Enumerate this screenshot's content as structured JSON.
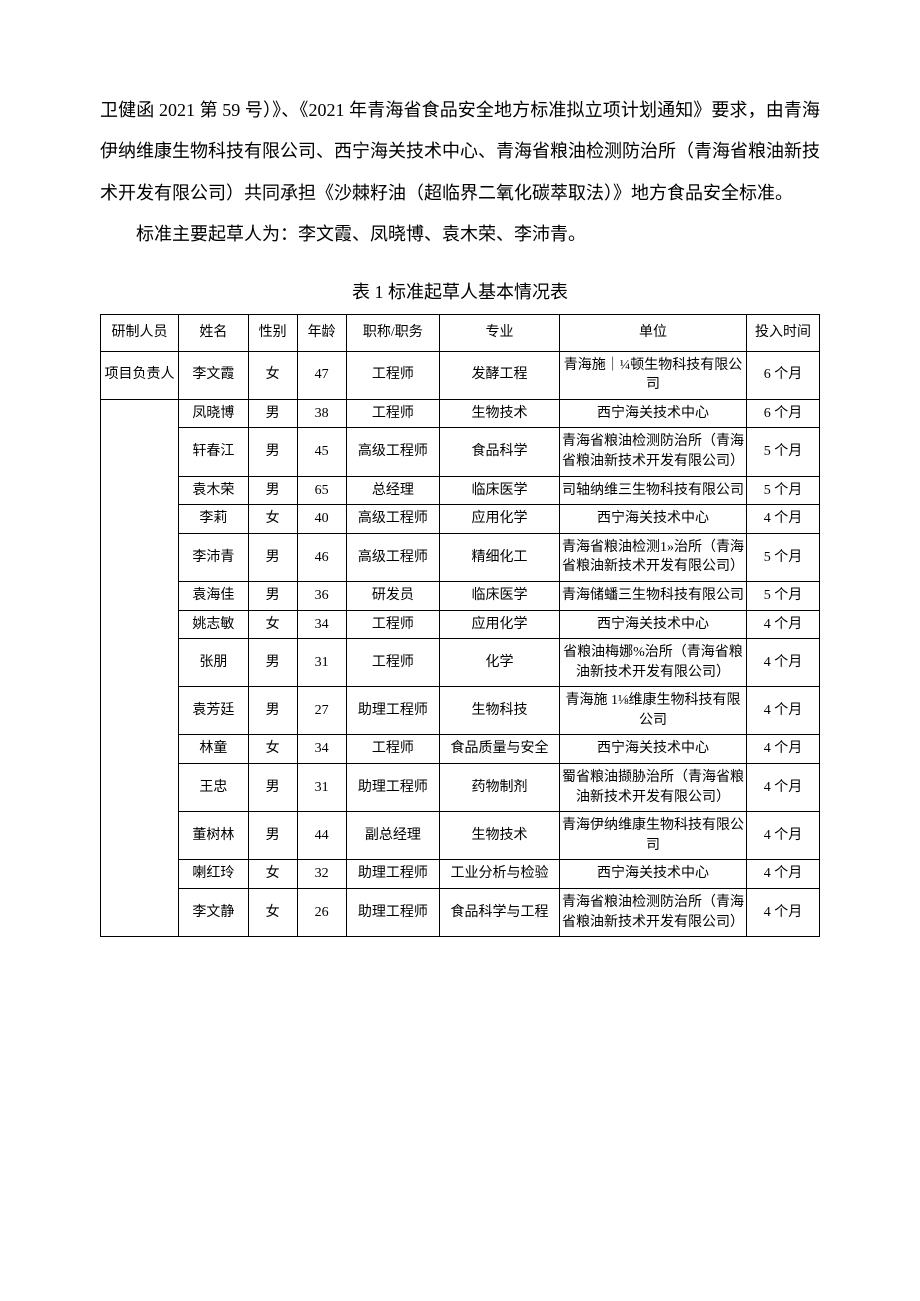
{
  "paragraphs": {
    "p1": "卫健函 2021 第 59 号）》、《2021 年青海省食品安全地方标准拟立项计划通知》要求，由青海伊纳维康生物科技有限公司、西宁海关技术中心、青海省粮油检测防治所（青海省粮油新技术开发有限公司）共同承担《沙棘籽油（超临界二氧化碳萃取法）》地方食品安全标准。",
    "p2": "标准主要起草人为：李文霞、凤晓博、袁木荣、李沛青。"
  },
  "table": {
    "title": "表 1 标准起草人基本情况表",
    "headers": {
      "role": "研制人员",
      "name": "姓名",
      "gender": "性别",
      "age": "年龄",
      "title": "职称/职务",
      "major": "专业",
      "org": "单位",
      "time": "投入时间"
    },
    "project_leader_label": "项目负责人",
    "rows": [
      {
        "name": "李文霞",
        "gender": "女",
        "age": "47",
        "title": "工程师",
        "major": "发酵工程",
        "org": "青海施｜¼顿生物科技有限公司",
        "time": "6 个月"
      },
      {
        "name": "凤晓博",
        "gender": "男",
        "age": "38",
        "title": "工程师",
        "major": "生物技术",
        "org": "西宁海关技术中心",
        "time": "6 个月"
      },
      {
        "name": "轩春江",
        "gender": "男",
        "age": "45",
        "title": "高级工程师",
        "major": "食品科学",
        "org": "青海省粮油检测防治所（青海省粮油新技术开发有限公司）",
        "time": "5 个月"
      },
      {
        "name": "袁木荣",
        "gender": "男",
        "age": "65",
        "title": "总经理",
        "major": "临床医学",
        "org": "司轴纳维三生物科技有限公司",
        "time": "5 个月"
      },
      {
        "name": "李莉",
        "gender": "女",
        "age": "40",
        "title": "高级工程师",
        "major": "应用化学",
        "org": "西宁海关技术中心",
        "time": "4 个月"
      },
      {
        "name": "李沛青",
        "gender": "男",
        "age": "46",
        "title": "高级工程师",
        "major": "精细化工",
        "org": "青海省粮油检测1»治所（青海省粮油新技术开发有限公司）",
        "time": "5 个月"
      },
      {
        "name": "袁海佳",
        "gender": "男",
        "age": "36",
        "title": "研发员",
        "major": "临床医学",
        "org": "青海储蟠三生物科技有限公司",
        "time": "5 个月"
      },
      {
        "name": "姚志敏",
        "gender": "女",
        "age": "34",
        "title": "工程师",
        "major": "应用化学",
        "org": "西宁海关技术中心",
        "time": "4 个月"
      },
      {
        "name": "张朋",
        "gender": "男",
        "age": "31",
        "title": "工程师",
        "major": "化学",
        "org": "省粮油梅娜%治所（青海省粮油新技术开发有限公司）",
        "time": "4 个月"
      },
      {
        "name": "袁芳廷",
        "gender": "男",
        "age": "27",
        "title": "助理工程师",
        "major": "生物科技",
        "org": "青海施 1⅛维康生物科技有限公司",
        "time": "4 个月"
      },
      {
        "name": "林童",
        "gender": "女",
        "age": "34",
        "title": "工程师",
        "major": "食品质量与安全",
        "org": "西宁海关技术中心",
        "time": "4 个月"
      },
      {
        "name": "王忠",
        "gender": "男",
        "age": "31",
        "title": "助理工程师",
        "major": "药物制剂",
        "org": "蜀省粮油撷胁治所（青海省粮油新技术开发有限公司）",
        "time": "4 个月"
      },
      {
        "name": "董树林",
        "gender": "男",
        "age": "44",
        "title": "副总经理",
        "major": "生物技术",
        "org": "青海伊纳维康生物科技有限公司",
        "time": "4 个月"
      },
      {
        "name": "喇红玲",
        "gender": "女",
        "age": "32",
        "title": "助理工程师",
        "major": "工业分析与检验",
        "org": "西宁海关技术中心",
        "time": "4 个月"
      },
      {
        "name": "李文静",
        "gender": "女",
        "age": "26",
        "title": "助理工程师",
        "major": "食品科学与工程",
        "org": "青海省粮油检测防治所（青海省粮油新技术开发有限公司）",
        "time": "4 个月"
      }
    ]
  }
}
